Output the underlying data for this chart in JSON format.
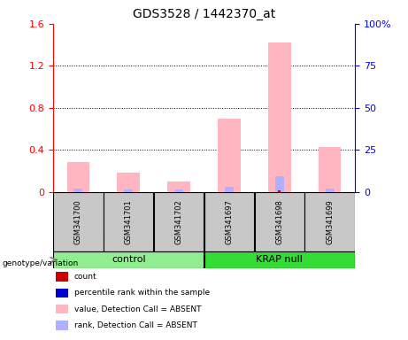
{
  "title": "GDS3528 / 1442370_at",
  "samples": [
    "GSM341700",
    "GSM341701",
    "GSM341702",
    "GSM341697",
    "GSM341698",
    "GSM341699"
  ],
  "groups": [
    {
      "label": "control",
      "indices": [
        0,
        1,
        2
      ],
      "color": "#90ee90"
    },
    {
      "label": "KRAP null",
      "indices": [
        3,
        4,
        5
      ],
      "color": "#33dd33"
    }
  ],
  "pink_bars": [
    0.28,
    0.18,
    0.1,
    0.7,
    1.42,
    0.43
  ],
  "blue_bars": [
    0.03,
    0.025,
    0.02,
    0.05,
    0.15,
    0.03
  ],
  "red_bars": [
    0.0,
    0.0,
    0.0,
    0.0,
    0.018,
    0.0
  ],
  "ylim_left": [
    0,
    1.6
  ],
  "ylim_right": [
    0,
    100
  ],
  "yticks_left": [
    0,
    0.4,
    0.8,
    1.2,
    1.6
  ],
  "ytick_labels_left": [
    "0",
    "0.4",
    "0.8",
    "1.2",
    "1.6"
  ],
  "yticks_right": [
    0,
    25,
    50,
    75,
    100
  ],
  "ytick_labels_right": [
    "0",
    "25",
    "50",
    "75",
    "100%"
  ],
  "pink_color": "#ffb6c1",
  "blue_color": "#b0b0ff",
  "red_color": "#cc0000",
  "darkblue_color": "#0000cc",
  "genotype_label": "genotype/variation",
  "legend_items": [
    {
      "color": "#cc0000",
      "label": "count"
    },
    {
      "color": "#0000cc",
      "label": "percentile rank within the sample"
    },
    {
      "color": "#ffb6c1",
      "label": "value, Detection Call = ABSENT"
    },
    {
      "color": "#b0b0ff",
      "label": "rank, Detection Call = ABSENT"
    }
  ],
  "sample_box_color": "#c8c8c8"
}
